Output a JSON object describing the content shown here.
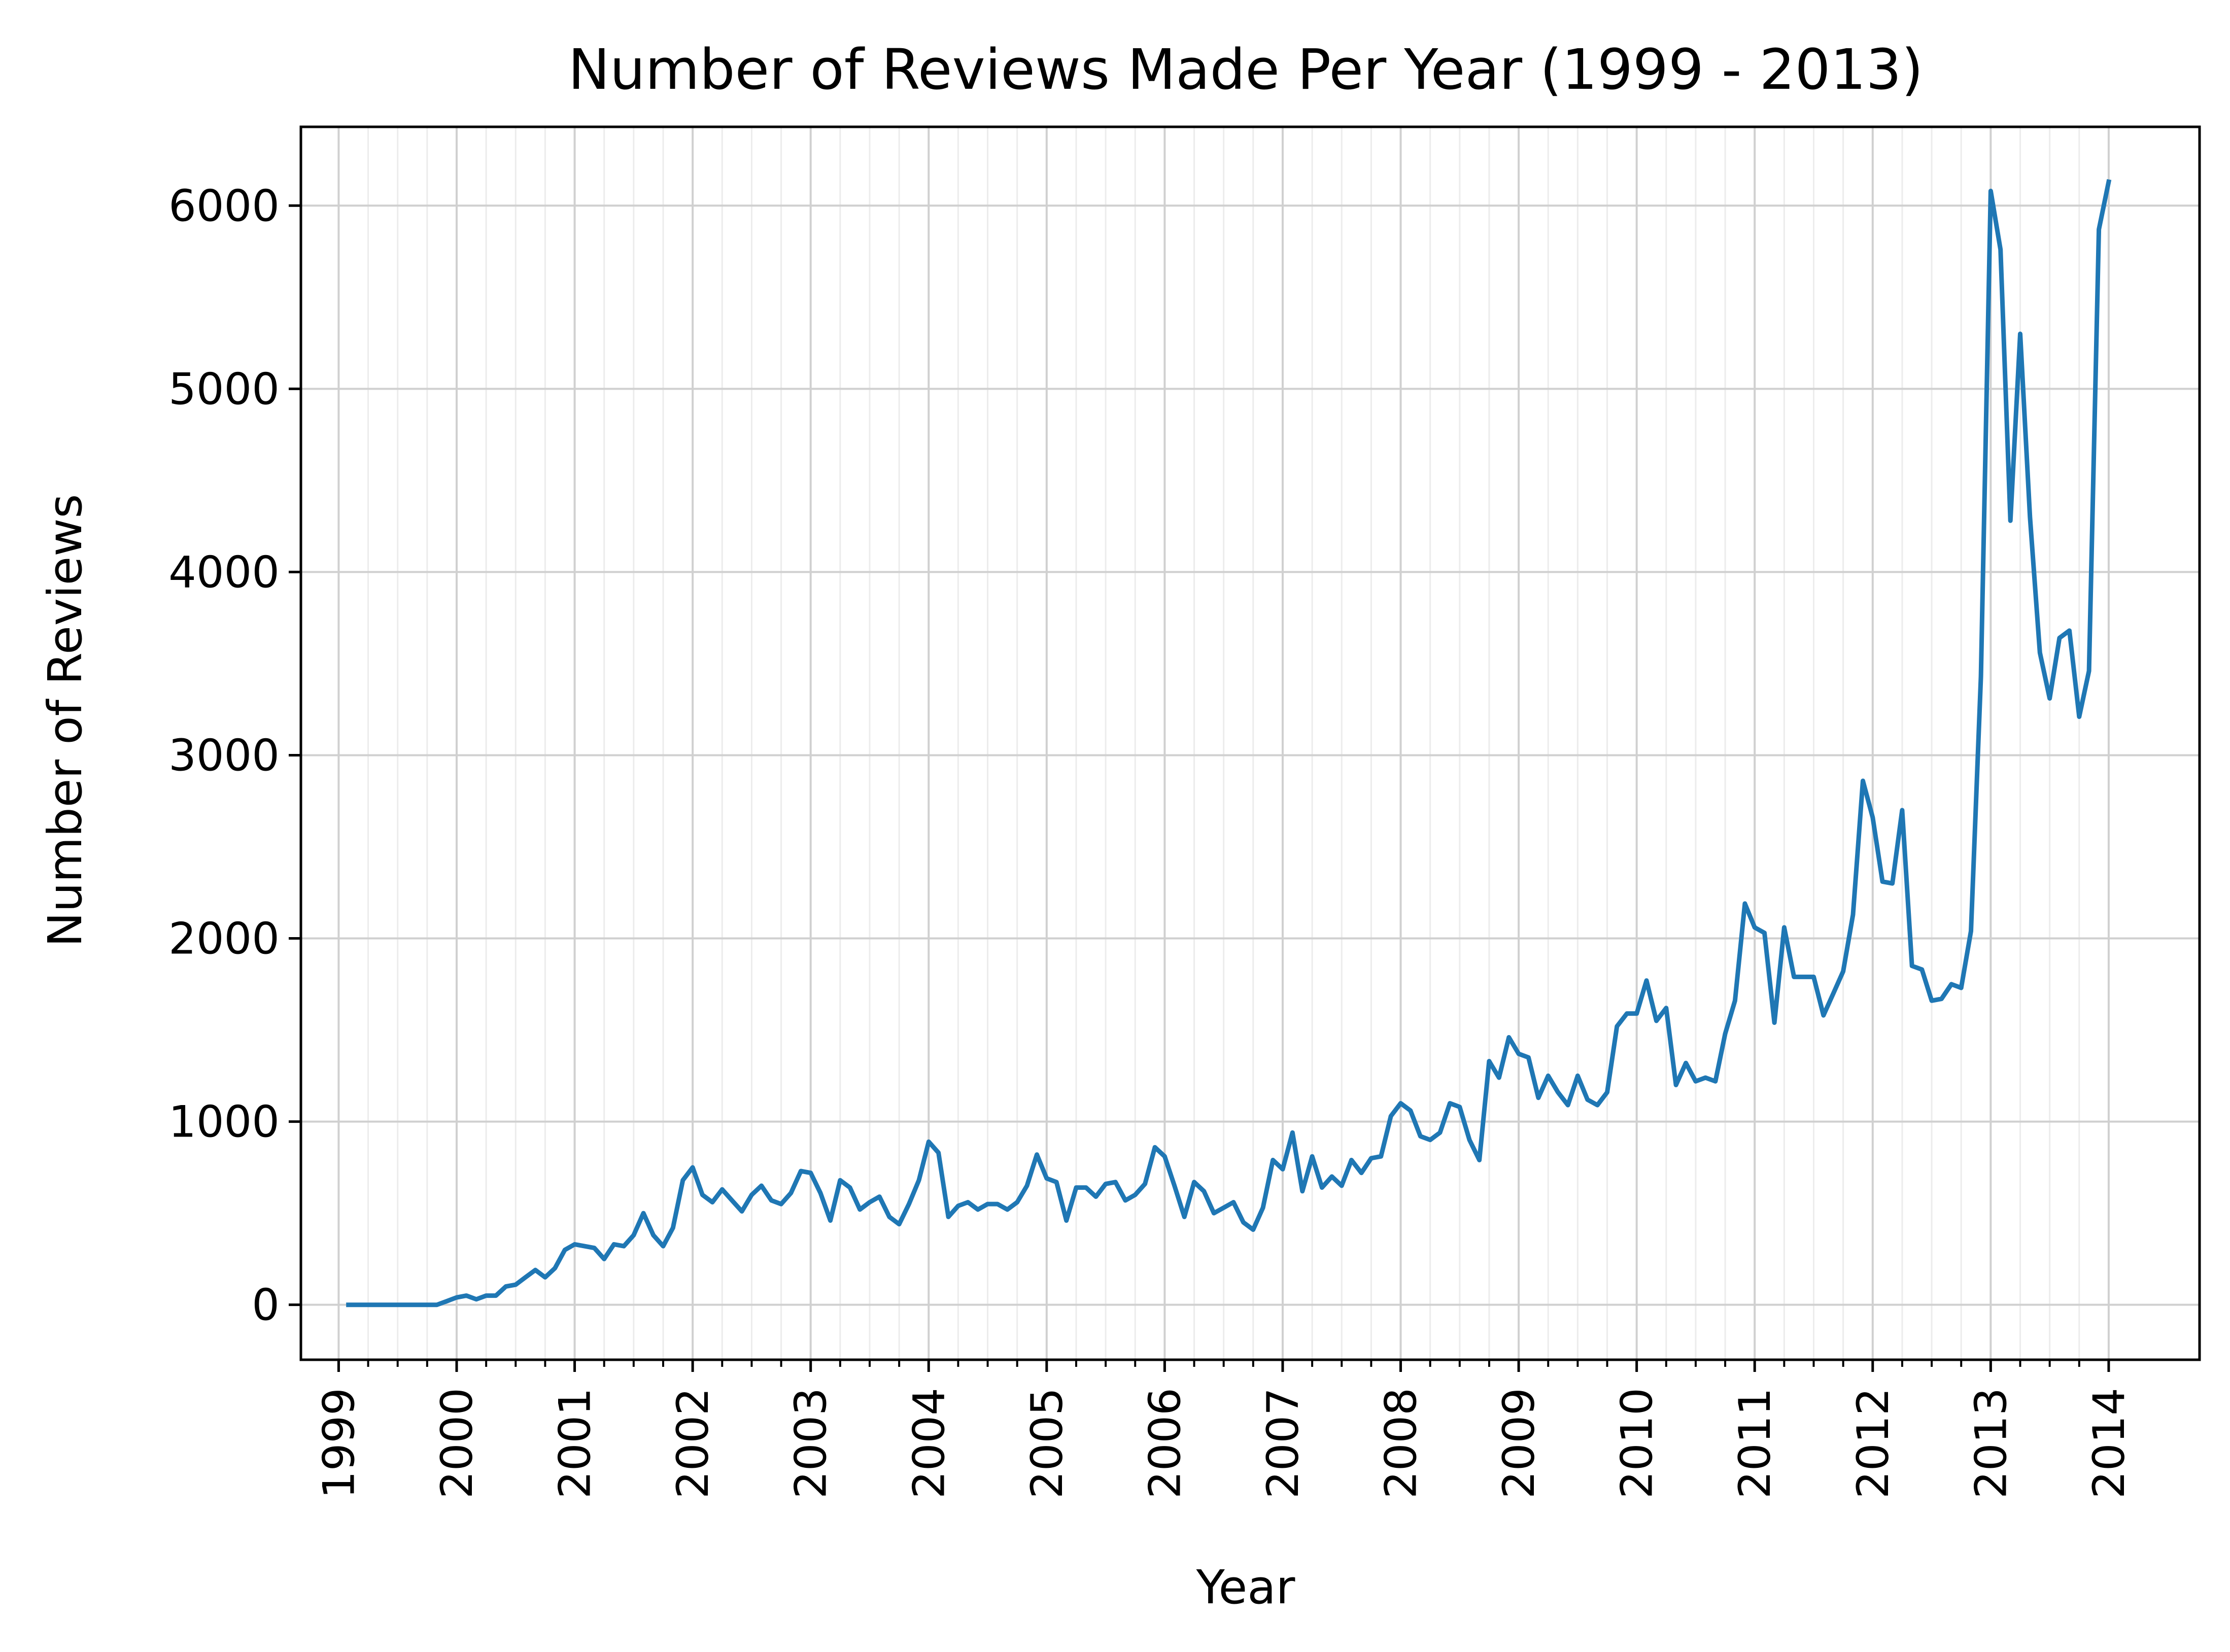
{
  "chart_data": {
    "type": "line",
    "title": "Number of Reviews Made Per Year (1999 - 2013)",
    "xlabel": "Year",
    "ylabel": "Number of Reviews",
    "xlim": [
      1998.68,
      2014.77
    ],
    "ylim": [
      -300,
      6430
    ],
    "x_ticks": [
      "1999",
      "2000",
      "2001",
      "2002",
      "2003",
      "2004",
      "2005",
      "2006",
      "2007",
      "2008",
      "2009",
      "2010",
      "2011",
      "2012",
      "2013",
      "2014"
    ],
    "y_ticks": [
      0,
      1000,
      2000,
      3000,
      4000,
      5000,
      6000
    ],
    "grid": true,
    "colors": {
      "line": "#1f77b4",
      "grid_major": "#d0d0d0",
      "grid_minor": "#ececec"
    },
    "series": [
      {
        "x": [
          1999.083,
          1999.167,
          1999.25,
          1999.333,
          1999.417,
          1999.5,
          1999.583,
          1999.667,
          1999.75,
          1999.833,
          1999.917,
          2000.0,
          2000.083,
          2000.167,
          2000.25,
          2000.333,
          2000.417,
          2000.5,
          2000.583,
          2000.667,
          2000.75,
          2000.833,
          2000.917,
          2001.0,
          2001.083,
          2001.167,
          2001.25,
          2001.333,
          2001.417,
          2001.5,
          2001.583,
          2001.667,
          2001.75,
          2001.833,
          2001.917,
          2002.0,
          2002.083,
          2002.167,
          2002.25,
          2002.333,
          2002.417,
          2002.5,
          2002.583,
          2002.667,
          2002.75,
          2002.833,
          2002.917,
          2003.0,
          2003.083,
          2003.167,
          2003.25,
          2003.333,
          2003.417,
          2003.5,
          2003.583,
          2003.667,
          2003.75,
          2003.833,
          2003.917,
          2004.0,
          2004.083,
          2004.167,
          2004.25,
          2004.333,
          2004.417,
          2004.5,
          2004.583,
          2004.667,
          2004.75,
          2004.833,
          2004.917,
          2005.0,
          2005.083,
          2005.167,
          2005.25,
          2005.333,
          2005.417,
          2005.5,
          2005.583,
          2005.667,
          2005.75,
          2005.833,
          2005.917,
          2006.0,
          2006.083,
          2006.167,
          2006.25,
          2006.333,
          2006.417,
          2006.5,
          2006.583,
          2006.667,
          2006.75,
          2006.833,
          2006.917,
          2007.0,
          2007.083,
          2007.167,
          2007.25,
          2007.333,
          2007.417,
          2007.5,
          2007.583,
          2007.667,
          2007.75,
          2007.833,
          2007.917,
          2008.0,
          2008.083,
          2008.167,
          2008.25,
          2008.333,
          2008.417,
          2008.5,
          2008.583,
          2008.667,
          2008.75,
          2008.833,
          2008.917,
          2009.0,
          2009.083,
          2009.167,
          2009.25,
          2009.333,
          2009.417,
          2009.5,
          2009.583,
          2009.667,
          2009.75,
          2009.833,
          2009.917,
          2010.0,
          2010.083,
          2010.167,
          2010.25,
          2010.333,
          2010.417,
          2010.5,
          2010.583,
          2010.667,
          2010.75,
          2010.833,
          2010.917,
          2011.0,
          2011.083,
          2011.167,
          2011.25,
          2011.333,
          2011.417,
          2011.5,
          2011.583,
          2011.667,
          2011.75,
          2011.833,
          2011.917,
          2012.0,
          2012.083,
          2012.167,
          2012.25,
          2012.333,
          2012.417,
          2012.5,
          2012.583,
          2012.667,
          2012.75,
          2012.833,
          2012.917,
          2013.0,
          2013.083,
          2013.167,
          2013.25,
          2013.333,
          2013.417,
          2013.5,
          2013.583,
          2013.667,
          2013.75,
          2013.833,
          2013.917,
          2014.0
        ],
        "values": [
          0,
          0,
          0,
          0,
          0,
          0,
          0,
          0,
          0,
          0,
          20,
          40,
          50,
          30,
          50,
          50,
          100,
          110,
          150,
          190,
          150,
          200,
          300,
          330,
          320,
          310,
          250,
          330,
          320,
          380,
          500,
          380,
          320,
          420,
          680,
          750,
          600,
          560,
          630,
          570,
          510,
          600,
          650,
          570,
          550,
          610,
          730,
          720,
          610,
          460,
          680,
          640,
          520,
          560,
          590,
          480,
          440,
          550,
          680,
          890,
          830,
          480,
          540,
          560,
          520,
          550,
          550,
          520,
          560,
          650,
          820,
          690,
          670,
          460,
          640,
          640,
          590,
          660,
          670,
          570,
          600,
          660,
          860,
          810,
          650,
          480,
          670,
          620,
          500,
          530,
          560,
          450,
          410,
          530,
          790,
          740,
          940,
          620,
          810,
          640,
          700,
          650,
          790,
          720,
          800,
          810,
          1030,
          1100,
          1060,
          920,
          900,
          940,
          1100,
          1080,
          900,
          790,
          1330,
          1240,
          1460,
          1370,
          1350,
          1130,
          1250,
          1160,
          1090,
          1250,
          1120,
          1090,
          1160,
          1520,
          1590,
          1590,
          1770,
          1550,
          1620,
          1200,
          1320,
          1220,
          1240,
          1220,
          1480,
          1660,
          2190,
          2060,
          2030,
          1540,
          2060,
          1790,
          1790,
          1790,
          1580,
          1700,
          1820,
          2130,
          2860,
          2660,
          2310,
          2300,
          2700,
          1850,
          1830,
          1660,
          1670,
          1750,
          1730,
          2040,
          3430,
          6080,
          5760,
          4280,
          5300,
          4300,
          3560,
          3310,
          3640,
          3680,
          3210,
          3460,
          5870,
          6130
        ]
      }
    ]
  }
}
